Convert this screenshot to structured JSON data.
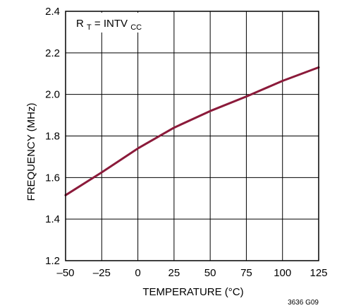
{
  "chart_data": {
    "type": "line",
    "xlabel": "TEMPERATURE (°C)",
    "ylabel": "FREQUENCY (MHz)",
    "xlim": [
      -50,
      125
    ],
    "ylim": [
      1.2,
      2.4
    ],
    "x_ticks": [
      -50,
      -25,
      0,
      25,
      50,
      75,
      100,
      125
    ],
    "y_ticks": [
      1.2,
      1.4,
      1.6,
      1.8,
      2.0,
      2.2,
      2.4
    ],
    "x_tick_labels": [
      "–50",
      "–25",
      "0",
      "25",
      "50",
      "75",
      "100",
      "125"
    ],
    "y_tick_labels": [
      "1.2",
      "1.4",
      "1.6",
      "1.8",
      "2.0",
      "2.2",
      "2.4"
    ],
    "grid": true,
    "line_color": "#8b1a3a",
    "annotation": {
      "main": "R",
      "sub1": "T",
      "mid": " = INTV",
      "sub2": "CC"
    },
    "figure_note": "3636 G09",
    "series": [
      {
        "x": [
          -50,
          -25,
          0,
          25,
          50,
          75,
          100,
          125
        ],
        "y": [
          1.515,
          1.625,
          1.74,
          1.84,
          1.92,
          1.99,
          2.065,
          2.13
        ]
      }
    ]
  }
}
